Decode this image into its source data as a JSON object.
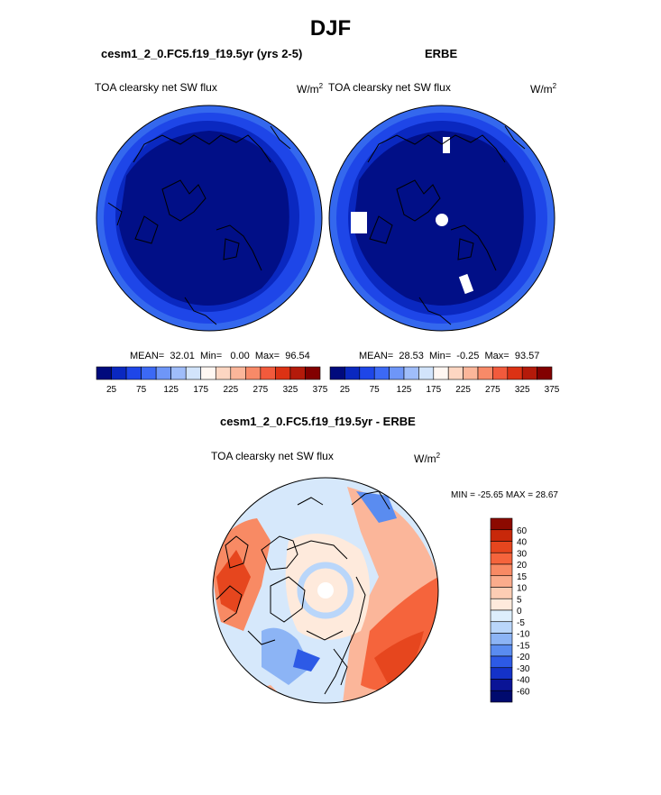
{
  "season": "DJF",
  "panels": {
    "model": {
      "case": "cesm1_2_0.FC5.f19_f19.5yr (yrs 2-5)",
      "variable": "TOA clearsky net SW flux",
      "units": "W/m",
      "units_exp": "2",
      "stats": {
        "mean_label": "MEAN=",
        "mean": "32.01",
        "min_label": "Min=",
        "min": "0.00",
        "max_label": "Max=",
        "max": "96.54"
      }
    },
    "obs": {
      "case": "ERBE",
      "variable": "TOA clearsky net SW flux",
      "units": "W/m",
      "units_exp": "2",
      "stats": {
        "mean_label": "MEAN=",
        "mean": "28.53",
        "min_label": "Min=",
        "min": "-0.25",
        "max_label": "Max=",
        "max": "93.57"
      }
    },
    "diff": {
      "case": "cesm1_2_0.FC5.f19_f19.5yr - ERBE",
      "variable": "TOA clearsky net SW flux",
      "units": "W/m",
      "units_exp": "2",
      "minmax": "MIN = -25.65 MAX =  28.67"
    }
  },
  "chart_data": [
    {
      "type": "heatmap",
      "projection": "north-polar stereographic",
      "title": "cesm1_2_0.FC5.f19_f19.5yr (yrs 2-5)",
      "variable": "TOA clearsky net SW flux",
      "units": "W/m2",
      "mean": 32.01,
      "min": 0.0,
      "max": 96.54,
      "colorbar_ticks": [
        "25",
        "75",
        "125",
        "175",
        "225",
        "275",
        "325",
        "375"
      ],
      "colorbar_colors": [
        "#000a7d",
        "#0a28c0",
        "#1e46e8",
        "#3c69f5",
        "#6e96f8",
        "#9fbdfa",
        "#d2e4fb",
        "#fff7f2",
        "#fdd6c2",
        "#fbb69a",
        "#f88a68",
        "#f25a3c",
        "#dc3214",
        "#b41a0a",
        "#820000"
      ]
    },
    {
      "type": "heatmap",
      "projection": "north-polar stereographic",
      "title": "ERBE",
      "variable": "TOA clearsky net SW flux",
      "units": "W/m2",
      "mean": 28.53,
      "min": -0.25,
      "max": 93.57,
      "colorbar_ticks": [
        "25",
        "75",
        "125",
        "175",
        "225",
        "275",
        "325",
        "375"
      ],
      "colorbar_colors": [
        "#000a7d",
        "#0a28c0",
        "#1e46e8",
        "#3c69f5",
        "#6e96f8",
        "#9fbdfa",
        "#d2e4fb",
        "#fff7f2",
        "#fdd6c2",
        "#fbb69a",
        "#f88a68",
        "#f25a3c",
        "#dc3214",
        "#b41a0a",
        "#820000"
      ]
    },
    {
      "type": "heatmap",
      "projection": "north-polar stereographic",
      "title": "cesm1_2_0.FC5.f19_f19.5yr - ERBE",
      "variable": "TOA clearsky net SW flux",
      "units": "W/m2",
      "min": -25.65,
      "max": 28.67,
      "colorbar_ticks": [
        "60",
        "40",
        "30",
        "20",
        "15",
        "10",
        "5",
        "0",
        "-5",
        "-10",
        "-15",
        "-20",
        "-30",
        "-40",
        "-60"
      ],
      "colorbar_colors": [
        "#8c0a00",
        "#c8280a",
        "#e6461e",
        "#f5643c",
        "#f88a64",
        "#fbac8c",
        "#fdcdb4",
        "#feeadc",
        "#ddeefc",
        "#b9d6fa",
        "#8cb4f5",
        "#5a8cf0",
        "#2d5ae6",
        "#1432c8",
        "#0a1496",
        "#000a6e"
      ]
    }
  ]
}
